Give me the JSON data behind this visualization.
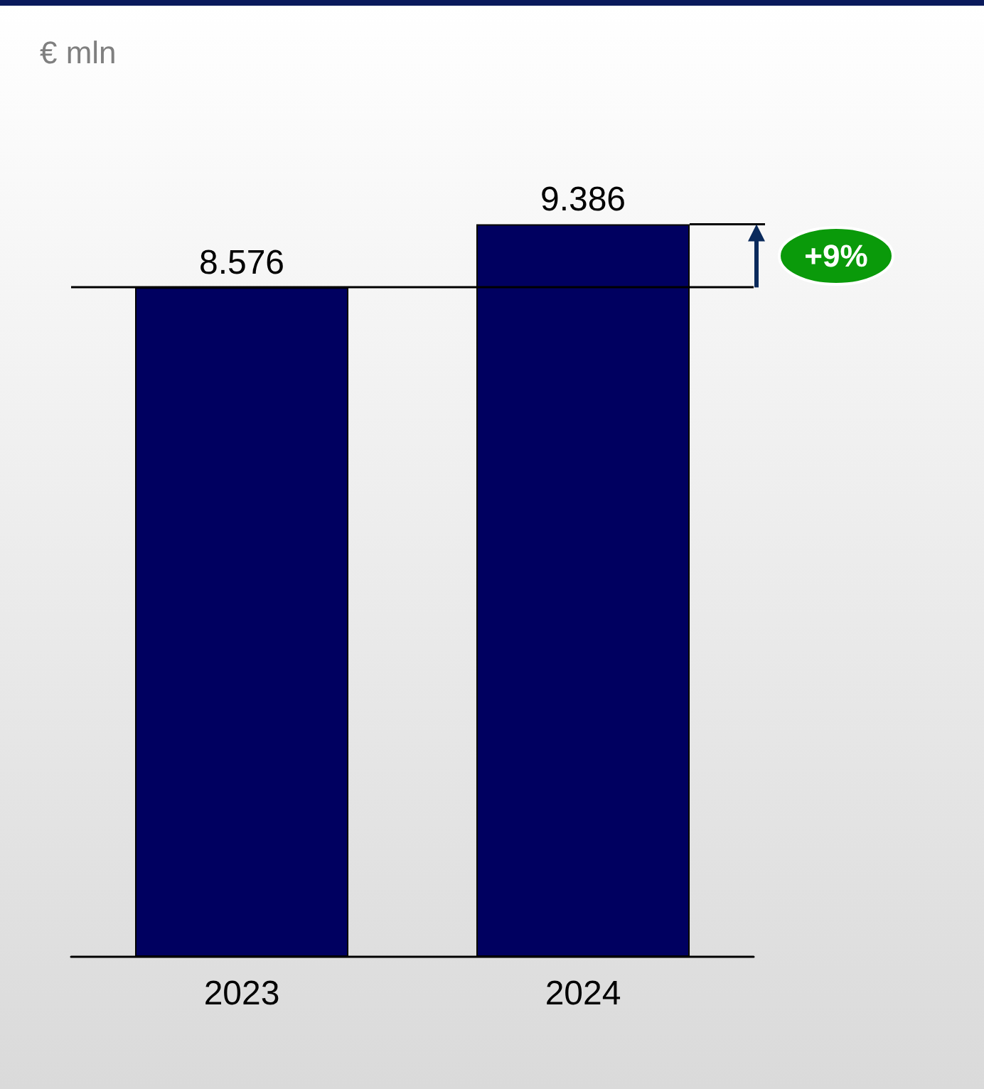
{
  "chart_data": {
    "type": "bar",
    "ylabel": "€ mln",
    "categories": [
      "2023",
      "2024"
    ],
    "values": [
      8576,
      9386
    ],
    "value_labels": [
      "8.576",
      "9.386"
    ],
    "color": "#000060",
    "ref_lines": [
      {
        "axis": "y",
        "value": 8576,
        "color": "#000000"
      }
    ],
    "annotations": [
      "+9%"
    ]
  }
}
